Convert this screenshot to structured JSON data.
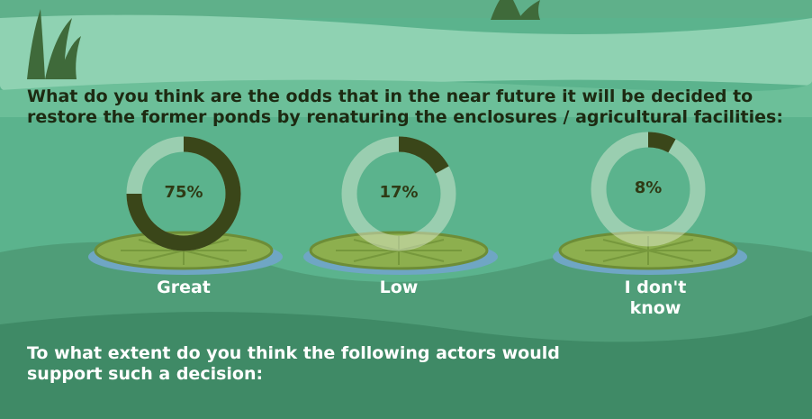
{
  "question": [
    "What do you think are the odds that in the near future it will be decided to",
    "restore the former ponds by renaturing the enclosures / agricultural facilities:"
  ],
  "chart_data": [
    {
      "type": "donut",
      "categories": [
        "Great"
      ],
      "values": [
        75
      ],
      "value_labels": [
        "75%"
      ],
      "color": "#3a4619"
    },
    {
      "type": "donut",
      "categories": [
        "Low"
      ],
      "values": [
        17
      ],
      "value_labels": [
        "17%"
      ],
      "color": "#3a4619"
    },
    {
      "type": "donut",
      "categories": [
        "I don't know"
      ],
      "values": [
        8
      ],
      "value_labels": [
        "8%"
      ],
      "color": "#3a4619"
    }
  ],
  "question2": [
    "To what extent do you think the following actors would",
    "support such a decision:"
  ]
}
